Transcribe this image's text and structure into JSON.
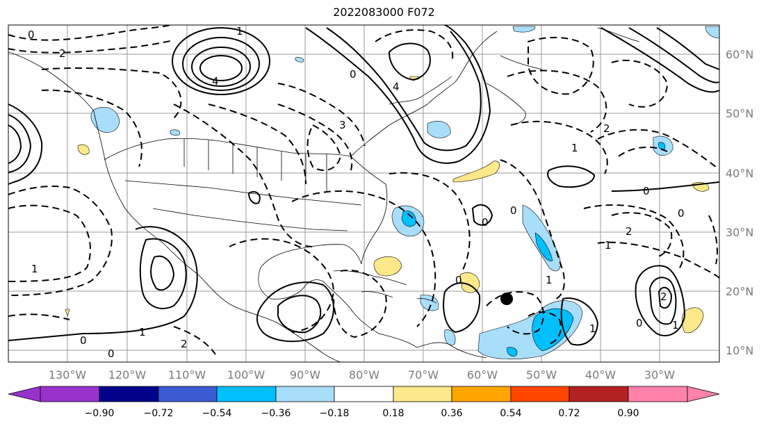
{
  "title": "2022083000 F072",
  "map": {
    "lon_labels": [
      "130°W",
      "120°W",
      "110°W",
      "100°W",
      "90°W",
      "80°W",
      "70°W",
      "60°W",
      "50°W",
      "40°W",
      "30°W"
    ],
    "lat_labels": [
      "60°N",
      "50°N",
      "40°N",
      "30°N",
      "20°N",
      "10°N"
    ],
    "contour_labels": [
      "0",
      "2",
      "1",
      "4",
      "3",
      "4",
      "0",
      "0",
      "1",
      "2",
      "1",
      "0",
      "0",
      "2",
      "1",
      "2",
      "1",
      "0",
      "0",
      "0",
      "0",
      "1",
      "2",
      "1",
      "0",
      "1"
    ],
    "marker": "storm-center-dot"
  },
  "colorbar": {
    "ticks": [
      "−0.90",
      "−0.72",
      "−0.54",
      "−0.36",
      "−0.18",
      "0.18",
      "0.36",
      "0.54",
      "0.72",
      "0.90"
    ],
    "colors": [
      "#9932cc",
      "#00008b",
      "#3a5bd1",
      "#00bfff",
      "#a8defa",
      "#ffffff",
      "#fde98a",
      "#ffa500",
      "#ff4500",
      "#b22222",
      "#ff82ab"
    ]
  }
}
